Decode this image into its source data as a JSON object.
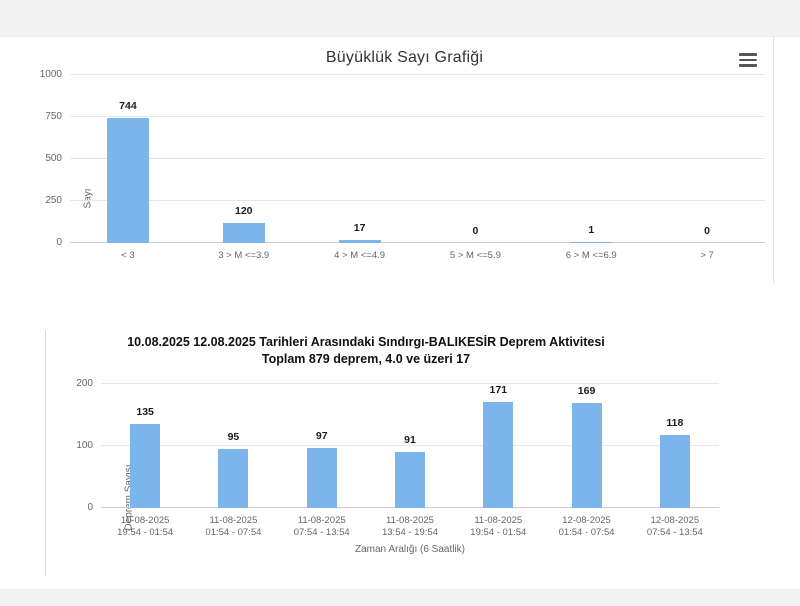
{
  "page": {
    "background": "#f3f3f3",
    "content_background": "#ffffff"
  },
  "top_chart_menu": {
    "icon": "hamburger-menu-icon"
  },
  "chart_data": [
    {
      "type": "bar",
      "title": "Büyüklük Sayı Grafiği",
      "subtitle": "",
      "ylabel": "Sayı",
      "xlabel": "",
      "categories": [
        "< 3",
        "3 > M <=3.9",
        "4 > M <=4.9",
        "5 > M <=5.9",
        "6 > M <=6.9",
        "> 7"
      ],
      "values": [
        744,
        120,
        17,
        0,
        1,
        0
      ],
      "ylim": [
        0,
        1000
      ],
      "yticks": [
        0,
        250,
        500,
        750,
        1000
      ],
      "grid": true,
      "legend": false,
      "bar_color": "#7cb5ec",
      "data_labels": true,
      "has_export_menu": true
    },
    {
      "type": "bar",
      "title": "10.08.2025 12.08.2025 Tarihleri Arasındaki Sındırgı-BALIKESİR Deprem Aktivitesi",
      "subtitle": "Toplam  879  deprem, 4.0 ve üzeri 17",
      "ylabel": "Deprem Sayısı",
      "xlabel": "Zaman Aralığı (6 Saatlik)",
      "categories": [
        [
          "10-08-2025",
          "19:54 - 01:54"
        ],
        [
          "11-08-2025",
          "01:54 - 07:54"
        ],
        [
          "11-08-2025",
          "07:54 - 13:54"
        ],
        [
          "11-08-2025",
          "13:54 - 19:54"
        ],
        [
          "11-08-2025",
          "19:54 - 01:54"
        ],
        [
          "12-08-2025",
          "01:54 - 07:54"
        ],
        [
          "12-08-2025",
          "07:54 - 13:54"
        ]
      ],
      "values": [
        135,
        95,
        97,
        91,
        171,
        169,
        118
      ],
      "ylim": [
        0,
        200
      ],
      "yticks": [
        0,
        100,
        200
      ],
      "grid": true,
      "legend": false,
      "bar_color": "#7cb5ec",
      "data_labels": true,
      "has_export_menu": false
    }
  ]
}
